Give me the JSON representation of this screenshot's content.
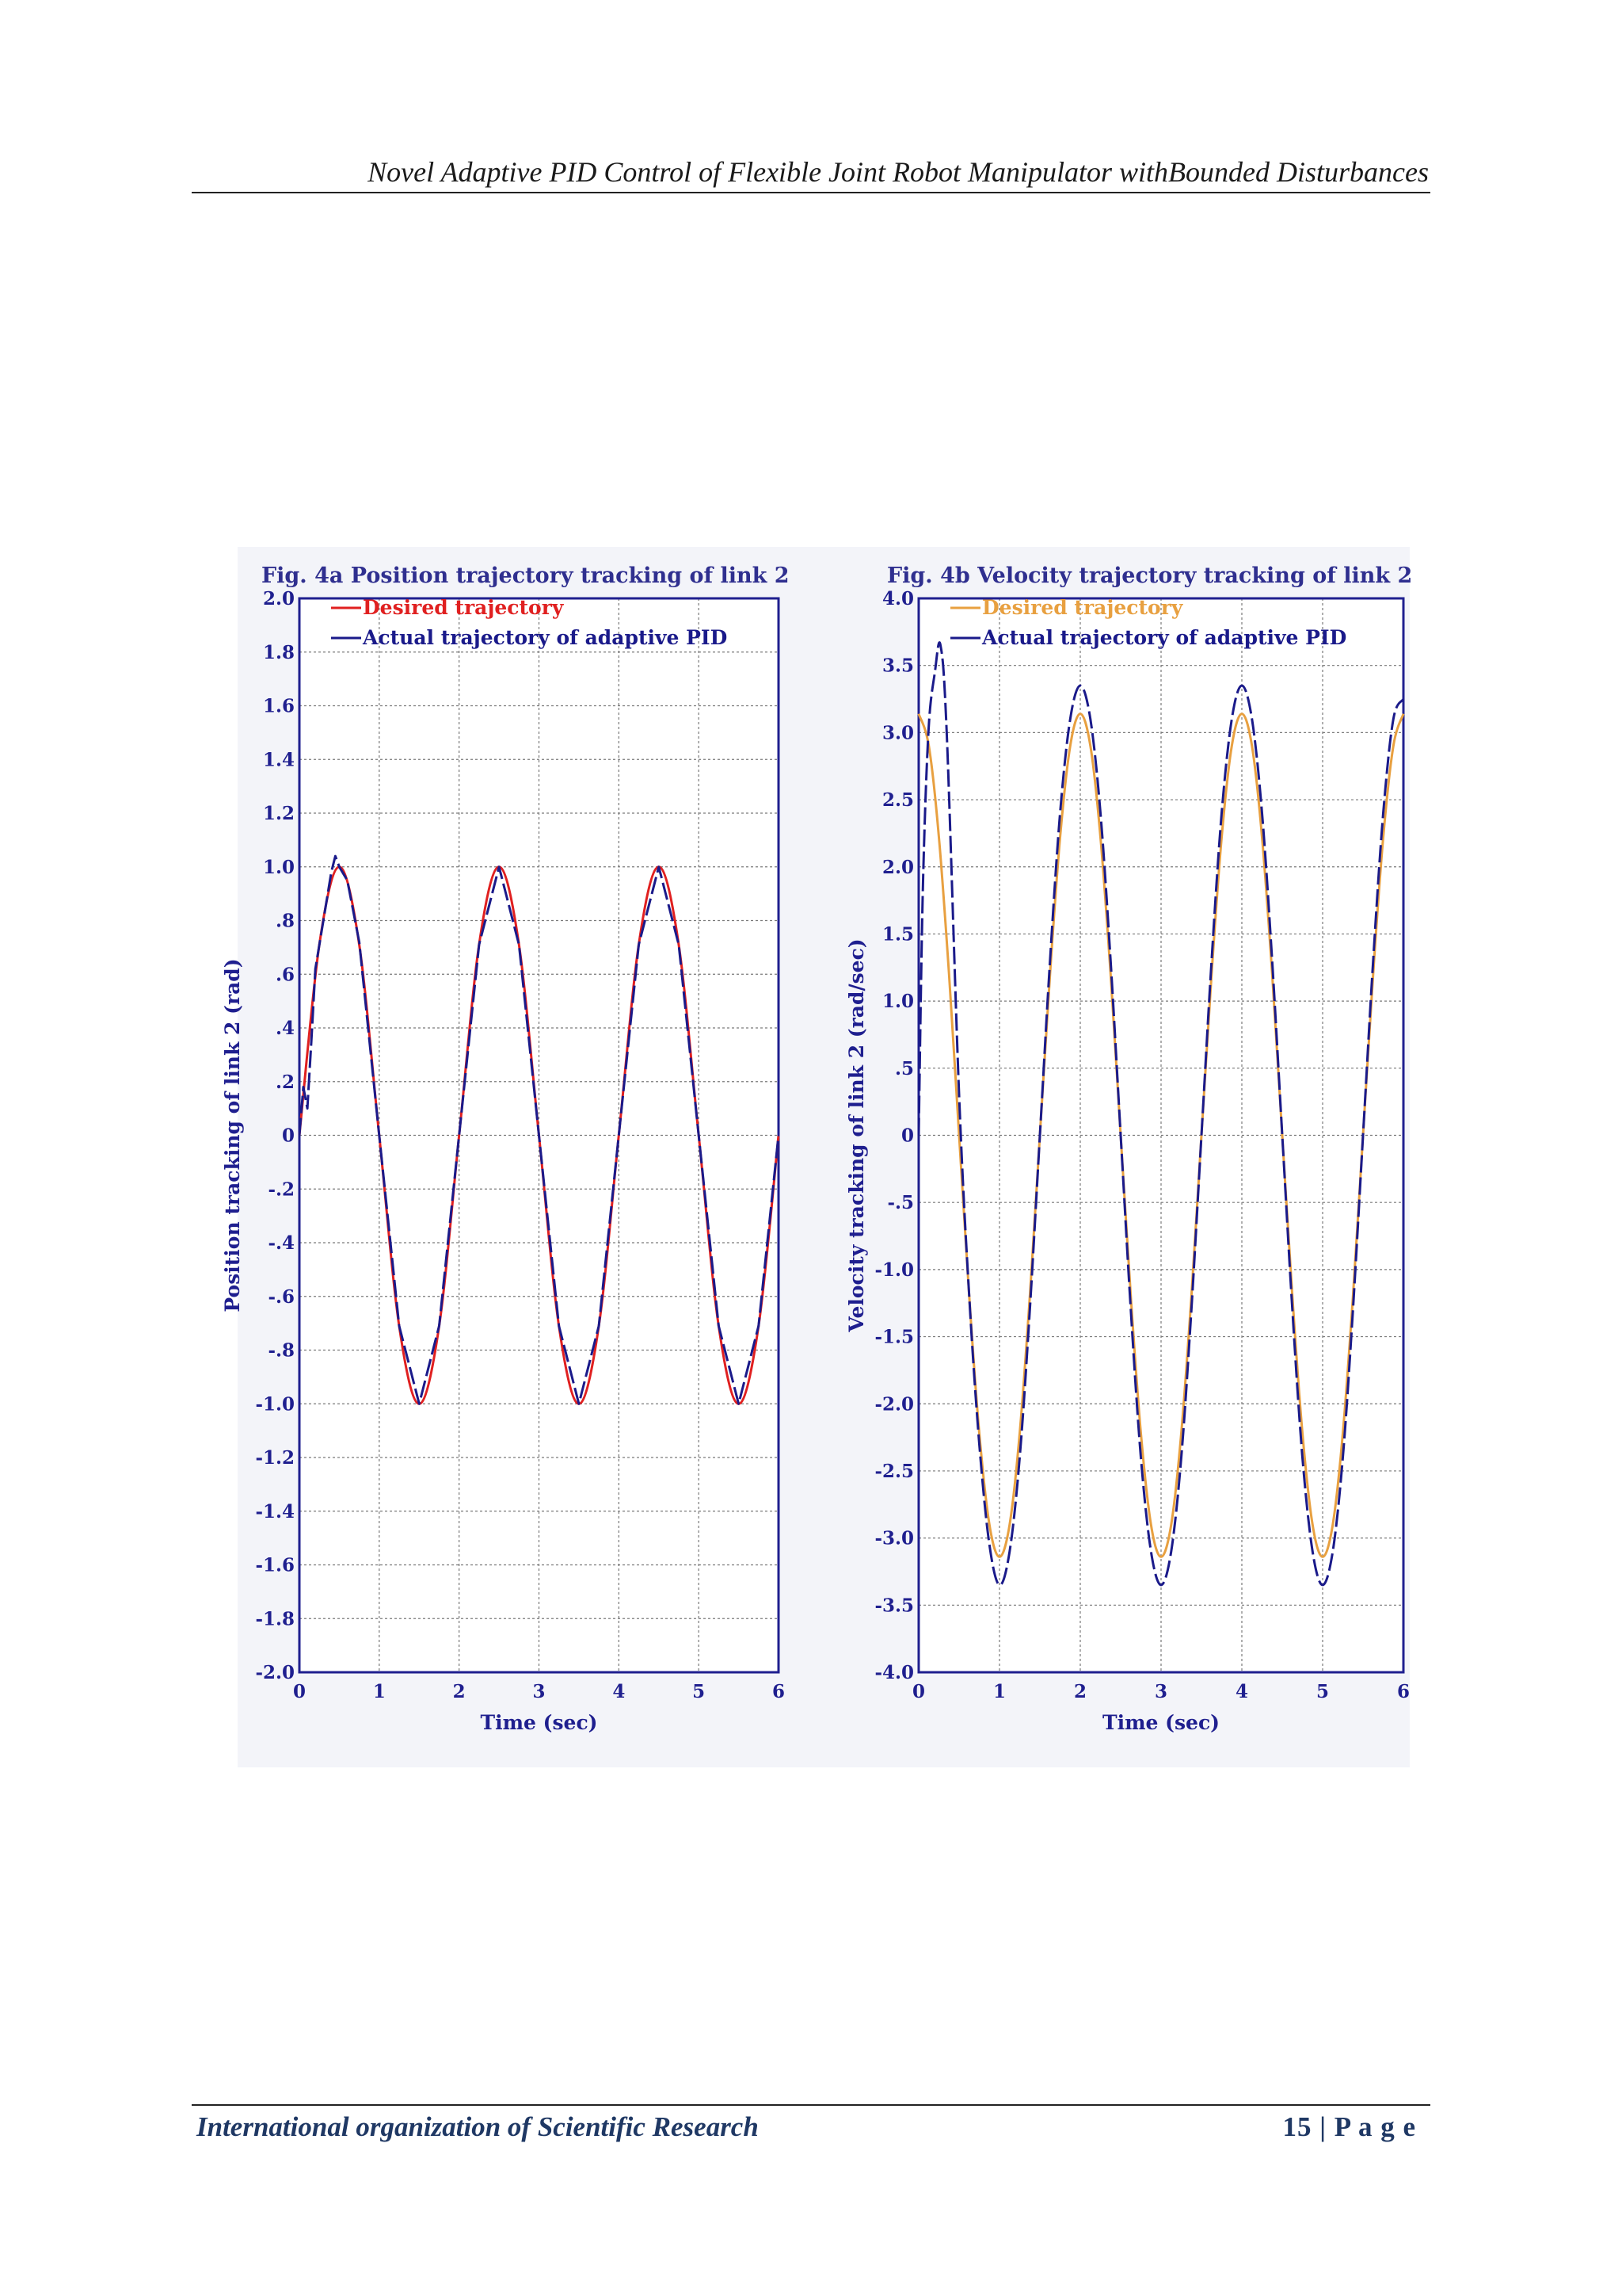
{
  "page": {
    "running_head": "Novel Adaptive PID Control of Flexible Joint Robot Manipulator withBounded Disturbances",
    "footer_left": "International organization of Scientific Research",
    "footer_right": "15 | P a g e"
  },
  "chart_data": [
    {
      "type": "line",
      "title": "Fig. 4a Position trajectory tracking of link 2",
      "xlabel": "Time (sec)",
      "ylabel": "Position tracking of link 2 (rad)",
      "xlim": [
        0,
        6
      ],
      "ylim": [
        -2.0,
        2.0
      ],
      "xticks": [
        "0",
        "1",
        "2",
        "3",
        "4",
        "5",
        "6"
      ],
      "yticks": [
        {
          "v": 2.0,
          "t": "2.0"
        },
        {
          "v": 1.8,
          "t": "1.8"
        },
        {
          "v": 1.6,
          "t": "1.6"
        },
        {
          "v": 1.4,
          "t": "1.4"
        },
        {
          "v": 1.2,
          "t": "1.2"
        },
        {
          "v": 1.0,
          "t": "1.0"
        },
        {
          "v": 0.8,
          "t": ".8"
        },
        {
          "v": 0.6,
          "t": ".6"
        },
        {
          "v": 0.4,
          "t": ".4"
        },
        {
          "v": 0.2,
          "t": ".2"
        },
        {
          "v": 0,
          "t": "0"
        },
        {
          "v": -0.2,
          "t": "-.2"
        },
        {
          "v": -0.4,
          "t": "-.4"
        },
        {
          "v": -0.6,
          "t": "-.6"
        },
        {
          "v": -0.8,
          "t": "-.8"
        },
        {
          "v": -1.0,
          "t": "-1.0"
        },
        {
          "v": -1.2,
          "t": "-1.2"
        },
        {
          "v": -1.4,
          "t": "-1.4"
        },
        {
          "v": -1.6,
          "t": "-1.6"
        },
        {
          "v": -1.8,
          "t": "-1.8"
        },
        {
          "v": -2.0,
          "t": "-2.0"
        }
      ],
      "grid": true,
      "legend_position": "top-left",
      "series": [
        {
          "name": "Desired trajectory",
          "color": "#e02020",
          "x": [
            0,
            0.25,
            0.5,
            0.75,
            1.0,
            1.25,
            1.5,
            1.75,
            2.0,
            2.25,
            2.5,
            2.75,
            3.0,
            3.25,
            3.5,
            3.75,
            4.0,
            4.25,
            4.5,
            4.75,
            5.0,
            5.25,
            5.5,
            5.75,
            6.0
          ],
          "y": [
            0,
            0.71,
            1.0,
            0.71,
            0,
            -0.71,
            -1.0,
            -0.71,
            0,
            0.71,
            1.0,
            0.71,
            0,
            -0.71,
            -1.0,
            -0.71,
            0,
            0.71,
            1.0,
            0.71,
            0,
            -0.71,
            -1.0,
            -0.71,
            0
          ]
        },
        {
          "name": "Actual trajectory of adaptive PID",
          "color": "#1a1a8a",
          "x": [
            0,
            0.05,
            0.1,
            0.15,
            0.2,
            0.3,
            0.4,
            0.45,
            0.5,
            0.6,
            0.75,
            1.0,
            1.25,
            1.5,
            1.75,
            2.0,
            2.25,
            2.5,
            2.75,
            3.0,
            3.25,
            3.5,
            3.75,
            4.0,
            4.25,
            4.5,
            4.75,
            5.0,
            5.25,
            5.5,
            5.75,
            6.0
          ],
          "y": [
            0,
            0.18,
            0.1,
            0.35,
            0.62,
            0.8,
            0.98,
            1.04,
            1.0,
            0.95,
            0.72,
            0,
            -0.71,
            -1.0,
            -0.71,
            0,
            0.71,
            1.0,
            0.71,
            0,
            -0.71,
            -1.0,
            -0.71,
            0,
            0.71,
            1.0,
            0.71,
            0,
            -0.71,
            -1.0,
            -0.71,
            0
          ]
        }
      ]
    },
    {
      "type": "line",
      "title": "Fig. 4b Velocity trajectory tracking of link 2",
      "xlabel": "Time (sec)",
      "ylabel": "Velocity tracking of link 2 (rad/sec)",
      "xlim": [
        0,
        6
      ],
      "ylim": [
        -4.0,
        4.0
      ],
      "xticks": [
        "0",
        "1",
        "2",
        "3",
        "4",
        "5",
        "6"
      ],
      "yticks": [
        {
          "v": 4.0,
          "t": "4.0"
        },
        {
          "v": 3.5,
          "t": "3.5"
        },
        {
          "v": 3.0,
          "t": "3.0"
        },
        {
          "v": 2.5,
          "t": "2.5"
        },
        {
          "v": 2.0,
          "t": "2.0"
        },
        {
          "v": 1.5,
          "t": "1.5"
        },
        {
          "v": 1.0,
          "t": "1.0"
        },
        {
          "v": 0.5,
          "t": ".5"
        },
        {
          "v": 0,
          "t": "0"
        },
        {
          "v": -0.5,
          "t": "-.5"
        },
        {
          "v": -1.0,
          "t": "-1.0"
        },
        {
          "v": -1.5,
          "t": "-1.5"
        },
        {
          "v": -2.0,
          "t": "-2.0"
        },
        {
          "v": -2.5,
          "t": "-2.5"
        },
        {
          "v": -3.0,
          "t": "-3.0"
        },
        {
          "v": -3.5,
          "t": "-3.5"
        },
        {
          "v": -4.0,
          "t": "-4.0"
        }
      ],
      "grid": true,
      "legend_position": "top-left",
      "series": [
        {
          "name": "Desired trajectory",
          "color": "#e8a040",
          "x": [
            0,
            0.125,
            0.25,
            0.375,
            0.5,
            0.625,
            0.75,
            0.875,
            1.0,
            1.125,
            1.25,
            1.375,
            1.5,
            1.625,
            1.75,
            1.875,
            2.0,
            2.125,
            2.25,
            2.375,
            2.5,
            2.625,
            2.75,
            2.875,
            3.0,
            3.125,
            3.25,
            3.375,
            3.5,
            3.625,
            3.75,
            3.875,
            4.0,
            4.125,
            4.25,
            4.375,
            4.5,
            4.625,
            4.75,
            4.875,
            5.0,
            5.125,
            5.25,
            5.375,
            5.5,
            5.625,
            5.75,
            5.875,
            6.0
          ],
          "y": [
            3.14,
            2.9,
            2.22,
            1.2,
            0,
            -1.2,
            -2.22,
            -2.9,
            -3.14,
            -2.9,
            -2.22,
            -1.2,
            0,
            1.2,
            2.22,
            2.9,
            3.14,
            2.9,
            2.22,
            1.2,
            0,
            -1.2,
            -2.22,
            -2.9,
            -3.14,
            -2.9,
            -2.22,
            -1.2,
            0,
            1.2,
            2.22,
            2.9,
            3.14,
            2.9,
            2.22,
            1.2,
            0,
            -1.2,
            -2.22,
            -2.9,
            -3.14,
            -2.9,
            -2.22,
            -1.2,
            0,
            1.2,
            2.22,
            2.9,
            3.14
          ]
        },
        {
          "name": "Actual trajectory of adaptive PID",
          "color": "#1a1a8a",
          "x": [
            0,
            0.05,
            0.12,
            0.2,
            0.27,
            0.35,
            0.5,
            0.625,
            0.75,
            0.875,
            1.0,
            1.125,
            1.25,
            1.375,
            1.5,
            1.625,
            1.75,
            1.875,
            2.0,
            2.125,
            2.25,
            2.375,
            2.5,
            2.625,
            2.75,
            2.875,
            3.0,
            3.125,
            3.25,
            3.375,
            3.5,
            3.625,
            3.75,
            3.875,
            4.0,
            4.125,
            4.25,
            4.375,
            4.5,
            4.625,
            4.75,
            4.875,
            5.0,
            5.125,
            5.25,
            5.375,
            5.5,
            5.625,
            5.75,
            5.875,
            6.0
          ],
          "y": [
            0,
            1.8,
            3.0,
            3.45,
            3.65,
            2.95,
            0.3,
            -1.2,
            -2.3,
            -3.05,
            -3.35,
            -3.1,
            -2.4,
            -1.3,
            0,
            1.3,
            2.4,
            3.1,
            3.35,
            3.1,
            2.4,
            1.3,
            0,
            -1.3,
            -2.4,
            -3.1,
            -3.35,
            -3.1,
            -2.4,
            -1.3,
            0,
            1.3,
            2.4,
            3.1,
            3.35,
            3.1,
            2.4,
            1.3,
            0,
            -1.3,
            -2.4,
            -3.1,
            -3.35,
            -3.1,
            -2.4,
            -1.3,
            0,
            1.3,
            2.4,
            3.1,
            3.25
          ]
        }
      ]
    }
  ]
}
